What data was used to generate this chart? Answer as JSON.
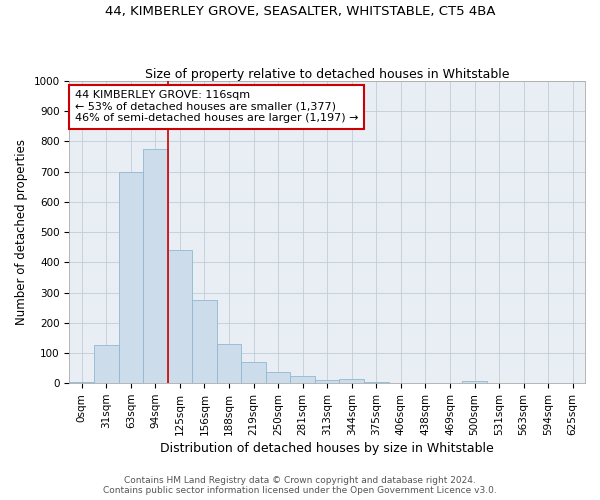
{
  "title1": "44, KIMBERLEY GROVE, SEASALTER, WHITSTABLE, CT5 4BA",
  "title2": "Size of property relative to detached houses in Whitstable",
  "xlabel": "Distribution of detached houses by size in Whitstable",
  "ylabel": "Number of detached properties",
  "categories": [
    "0sqm",
    "31sqm",
    "63sqm",
    "94sqm",
    "125sqm",
    "156sqm",
    "188sqm",
    "219sqm",
    "250sqm",
    "281sqm",
    "313sqm",
    "344sqm",
    "375sqm",
    "406sqm",
    "438sqm",
    "469sqm",
    "500sqm",
    "531sqm",
    "563sqm",
    "594sqm",
    "625sqm"
  ],
  "values": [
    5,
    125,
    700,
    775,
    440,
    275,
    130,
    70,
    38,
    25,
    10,
    15,
    5,
    0,
    0,
    0,
    8,
    0,
    0,
    0,
    0
  ],
  "bar_color": "#ccdcea",
  "bar_edge_color": "#90b8d0",
  "highlight_line_color": "#cc0000",
  "highlight_line_index": 4,
  "annotation_text": "44 KIMBERLEY GROVE: 116sqm\n← 53% of detached houses are smaller (1,377)\n46% of semi-detached houses are larger (1,197) →",
  "annotation_box_facecolor": "#ffffff",
  "annotation_box_edgecolor": "#cc0000",
  "ylim": [
    0,
    1000
  ],
  "yticks": [
    0,
    100,
    200,
    300,
    400,
    500,
    600,
    700,
    800,
    900,
    1000
  ],
  "footer1": "Contains HM Land Registry data © Crown copyright and database right 2024.",
  "footer2": "Contains public sector information licensed under the Open Government Licence v3.0.",
  "bg_color": "#ffffff",
  "plot_bg_color": "#e8eef4",
  "grid_color": "#c0cdd8",
  "title1_fontsize": 9.5,
  "title2_fontsize": 9,
  "tick_fontsize": 7.5,
  "ylabel_fontsize": 8.5,
  "xlabel_fontsize": 9,
  "annotation_fontsize": 8,
  "footer_fontsize": 6.5
}
